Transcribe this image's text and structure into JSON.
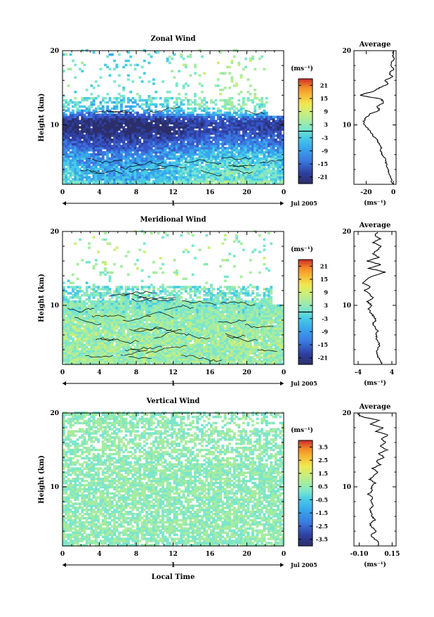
{
  "chart_data": [
    {
      "type": "heatmap",
      "title": "Zonal Wind",
      "ylabel": "Height (km)",
      "xlabel": "",
      "x_ticks": [
        "0",
        "4",
        "8",
        "12",
        "16",
        "20",
        "0"
      ],
      "xlim": [
        0,
        24
      ],
      "y_ticks": [
        "10",
        "20"
      ],
      "ylim": [
        2,
        20
      ],
      "day_label": "1",
      "date_label": "Jul 2005",
      "colorbar": {
        "unit_label": "(ms⁻¹)",
        "ticks": [
          "21",
          "15",
          "9",
          "3",
          "-3",
          "-9",
          "-15",
          "-21"
        ],
        "range": [
          -24,
          24
        ],
        "zero_line": 0
      },
      "data_summary": {
        "grid_time_step_hours": 0.5,
        "grid_height_step_km": 0.3,
        "profile": [
          {
            "height_km": 2.5,
            "value": -5
          },
          {
            "height_km": 4.0,
            "value": -5
          },
          {
            "height_km": 6.0,
            "value": -9
          },
          {
            "height_km": 8.0,
            "value": -16
          },
          {
            "height_km": 9.5,
            "value": -21
          },
          {
            "height_km": 10.5,
            "value": -19
          },
          {
            "height_km": 12.0,
            "value": -4
          },
          {
            "height_km": 14.0,
            "value": 0
          },
          {
            "height_km": 16.0,
            "value": -1
          },
          {
            "height_km": 18.0,
            "value": 0
          },
          {
            "height_km": 19.5,
            "value": -2
          }
        ]
      }
    },
    {
      "type": "heatmap",
      "title": "Meridional Wind",
      "ylabel": "Height (km)",
      "xlabel": "",
      "x_ticks": [
        "0",
        "4",
        "8",
        "12",
        "16",
        "20",
        "0"
      ],
      "xlim": [
        0,
        24
      ],
      "y_ticks": [
        "10",
        "20"
      ],
      "ylim": [
        2,
        20
      ],
      "day_label": "1",
      "date_label": "Jul 2005",
      "colorbar": {
        "unit_label": "(ms⁻¹)",
        "ticks": [
          "21",
          "15",
          "9",
          "3",
          "-3",
          "-9",
          "-15",
          "-21"
        ],
        "range": [
          -24,
          24
        ],
        "zero_line": 0
      },
      "data_summary": {
        "profile": [
          {
            "height_km": 2.5,
            "value": 1
          },
          {
            "height_km": 5.0,
            "value": 1.5
          },
          {
            "height_km": 8.0,
            "value": 0.5
          },
          {
            "height_km": 10.0,
            "value": -1
          },
          {
            "height_km": 11.5,
            "value": -2
          },
          {
            "height_km": 13.0,
            "value": -1
          },
          {
            "height_km": 15.0,
            "value": 2
          },
          {
            "height_km": 18.0,
            "value": 1
          }
        ]
      }
    },
    {
      "type": "heatmap",
      "title": "Vertical Wind",
      "ylabel": "Height (km)",
      "xlabel": "Local Time",
      "x_ticks": [
        "0",
        "4",
        "8",
        "12",
        "16",
        "20",
        "0"
      ],
      "xlim": [
        0,
        24
      ],
      "y_ticks": [
        "10",
        "20"
      ],
      "ylim": [
        2,
        20
      ],
      "day_label": "1",
      "date_label": "Jul 2005",
      "colorbar": {
        "unit_label": "(ms⁻¹)",
        "ticks": [
          "3.5",
          "2.5",
          "1.5",
          "0.5",
          "-0.5",
          "-1.5",
          "-2.5",
          "-3.5"
        ],
        "range": [
          -4,
          4
        ]
      },
      "data_summary": {
        "profile": [
          {
            "height_km": 2.5,
            "value": 0.05
          },
          {
            "height_km": 6.0,
            "value": 0.02
          },
          {
            "height_km": 10.0,
            "value": 0.0
          },
          {
            "height_km": 14.0,
            "value": 0.05
          },
          {
            "height_km": 18.0,
            "value": 0.08
          },
          {
            "height_km": 19.5,
            "value": -0.05
          }
        ]
      }
    }
  ],
  "averages": [
    {
      "title": "Average",
      "xlabel": "(ms⁻¹)",
      "x_ticks": [
        "-20",
        "0"
      ],
      "x_tick_values": [
        -20,
        0
      ],
      "xlim": [
        -29,
        2
      ],
      "y_ticks": [
        "10",
        "20"
      ],
      "ylim": [
        2,
        20
      ],
      "profile": [
        {
          "h": 2.0,
          "v": -0.5
        },
        {
          "h": 2.5,
          "v": -1.2
        },
        {
          "h": 3.0,
          "v": -1.8
        },
        {
          "h": 3.5,
          "v": -3.0
        },
        {
          "h": 4.0,
          "v": -4.2
        },
        {
          "h": 4.5,
          "v": -5.0
        },
        {
          "h": 5.0,
          "v": -5.6
        },
        {
          "h": 5.5,
          "v": -6.2
        },
        {
          "h": 6.0,
          "v": -8.0
        },
        {
          "h": 6.5,
          "v": -9.5
        },
        {
          "h": 7.0,
          "v": -9.0
        },
        {
          "h": 7.5,
          "v": -10.5
        },
        {
          "h": 8.0,
          "v": -12.0
        },
        {
          "h": 8.5,
          "v": -15.0
        },
        {
          "h": 9.0,
          "v": -16.5
        },
        {
          "h": 9.5,
          "v": -19.0
        },
        {
          "h": 10.0,
          "v": -21.0
        },
        {
          "h": 10.5,
          "v": -22.0
        },
        {
          "h": 11.0,
          "v": -20.0
        },
        {
          "h": 11.5,
          "v": -17.0
        },
        {
          "h": 12.0,
          "v": -10.0
        },
        {
          "h": 12.5,
          "v": -12.0
        },
        {
          "h": 13.0,
          "v": -7.0
        },
        {
          "h": 13.5,
          "v": -9.0
        },
        {
          "h": 14.0,
          "v": -25.0
        },
        {
          "h": 14.5,
          "v": -15.0
        },
        {
          "h": 15.0,
          "v": -10.0
        },
        {
          "h": 15.5,
          "v": -4.0
        },
        {
          "h": 16.0,
          "v": -6.0
        },
        {
          "h": 16.5,
          "v": -1.0
        },
        {
          "h": 17.0,
          "v": -3.0
        },
        {
          "h": 17.5,
          "v": 0.0
        },
        {
          "h": 18.0,
          "v": -2.0
        },
        {
          "h": 18.5,
          "v": -1.0
        },
        {
          "h": 19.0,
          "v": 0.5
        },
        {
          "h": 19.5,
          "v": -0.5
        },
        {
          "h": 20.0,
          "v": 0.5
        }
      ]
    },
    {
      "title": "Average",
      "xlabel": "(ms⁻¹)",
      "x_ticks": [
        "-4",
        "4"
      ],
      "x_tick_values": [
        -4,
        4
      ],
      "xlim": [
        -5,
        5
      ],
      "y_ticks": [
        "10",
        "20"
      ],
      "ylim": [
        2,
        20
      ],
      "profile": [
        {
          "h": 2.0,
          "v": 1.6
        },
        {
          "h": 2.5,
          "v": 1.3
        },
        {
          "h": 3.0,
          "v": 0.8
        },
        {
          "h": 3.5,
          "v": 0.3
        },
        {
          "h": 4.0,
          "v": 0.5
        },
        {
          "h": 4.5,
          "v": 1.0
        },
        {
          "h": 5.0,
          "v": 0.8
        },
        {
          "h": 5.5,
          "v": 0.4
        },
        {
          "h": 6.0,
          "v": 0.2
        },
        {
          "h": 6.5,
          "v": 0.6
        },
        {
          "h": 7.0,
          "v": 0.0
        },
        {
          "h": 7.5,
          "v": -0.5
        },
        {
          "h": 8.0,
          "v": 0.2
        },
        {
          "h": 8.5,
          "v": -0.3
        },
        {
          "h": 9.0,
          "v": -1.0
        },
        {
          "h": 9.5,
          "v": -1.5
        },
        {
          "h": 10.0,
          "v": -0.8
        },
        {
          "h": 10.5,
          "v": -1.8
        },
        {
          "h": 11.0,
          "v": -0.5
        },
        {
          "h": 11.5,
          "v": -1.2
        },
        {
          "h": 12.0,
          "v": -2.5
        },
        {
          "h": 12.5,
          "v": -1.0
        },
        {
          "h": 13.0,
          "v": -3.0
        },
        {
          "h": 13.5,
          "v": -2.0
        },
        {
          "h": 14.0,
          "v": -0.5
        },
        {
          "h": 14.5,
          "v": 2.5
        },
        {
          "h": 15.0,
          "v": -1.5
        },
        {
          "h": 15.5,
          "v": 1.5
        },
        {
          "h": 16.0,
          "v": -1.8
        },
        {
          "h": 16.5,
          "v": 1.0
        },
        {
          "h": 17.0,
          "v": -0.5
        },
        {
          "h": 17.5,
          "v": 0.5
        },
        {
          "h": 18.0,
          "v": 1.5
        },
        {
          "h": 18.5,
          "v": -0.5
        },
        {
          "h": 19.0,
          "v": 1.2
        },
        {
          "h": 19.5,
          "v": 0.0
        },
        {
          "h": 20.0,
          "v": 0.8
        }
      ]
    },
    {
      "title": "Average",
      "xlabel": "(ms⁻¹)",
      "x_ticks": [
        "-0.10",
        "0.15"
      ],
      "x_tick_values": [
        -0.1,
        0.15
      ],
      "xlim": [
        -0.14,
        0.18
      ],
      "y_ticks": [
        "10",
        "20"
      ],
      "ylim": [
        2,
        20
      ],
      "profile": [
        {
          "h": 2.0,
          "v": 0.04
        },
        {
          "h": 2.5,
          "v": 0.05
        },
        {
          "h": 3.0,
          "v": 0.01
        },
        {
          "h": 3.5,
          "v": -0.01
        },
        {
          "h": 4.0,
          "v": 0.03
        },
        {
          "h": 4.5,
          "v": 0.0
        },
        {
          "h": 5.0,
          "v": -0.02
        },
        {
          "h": 5.5,
          "v": 0.02
        },
        {
          "h": 6.0,
          "v": 0.0
        },
        {
          "h": 6.5,
          "v": -0.01
        },
        {
          "h": 7.0,
          "v": -0.02
        },
        {
          "h": 7.5,
          "v": 0.01
        },
        {
          "h": 8.0,
          "v": -0.01
        },
        {
          "h": 8.5,
          "v": 0.0
        },
        {
          "h": 9.0,
          "v": -0.03
        },
        {
          "h": 9.5,
          "v": 0.0
        },
        {
          "h": 10.0,
          "v": -0.01
        },
        {
          "h": 10.5,
          "v": 0.02
        },
        {
          "h": 11.0,
          "v": -0.02
        },
        {
          "h": 11.5,
          "v": 0.01
        },
        {
          "h": 12.0,
          "v": 0.04
        },
        {
          "h": 12.5,
          "v": 0.0
        },
        {
          "h": 13.0,
          "v": 0.06
        },
        {
          "h": 13.5,
          "v": 0.03
        },
        {
          "h": 14.0,
          "v": 0.09
        },
        {
          "h": 14.5,
          "v": 0.05
        },
        {
          "h": 15.0,
          "v": 0.11
        },
        {
          "h": 15.5,
          "v": 0.06
        },
        {
          "h": 16.0,
          "v": 0.1
        },
        {
          "h": 16.5,
          "v": 0.07
        },
        {
          "h": 17.0,
          "v": 0.12
        },
        {
          "h": 17.5,
          "v": 0.03
        },
        {
          "h": 18.0,
          "v": 0.08
        },
        {
          "h": 18.5,
          "v": -0.02
        },
        {
          "h": 19.0,
          "v": 0.05
        },
        {
          "h": 19.5,
          "v": -0.08
        },
        {
          "h": 20.0,
          "v": -0.12
        }
      ]
    }
  ],
  "colors": {
    "colormap": [
      "#2c2f6b",
      "#2e3f9e",
      "#3856c8",
      "#3a7ae0",
      "#38a6ec",
      "#48cbe6",
      "#7ce6cc",
      "#a6eca0",
      "#cdee78",
      "#efe84e",
      "#f7bc34",
      "#f48a28",
      "#e8532a",
      "#d02a2a"
    ],
    "contour": "#000000",
    "axis": "#000000",
    "background": "#ffffff"
  }
}
